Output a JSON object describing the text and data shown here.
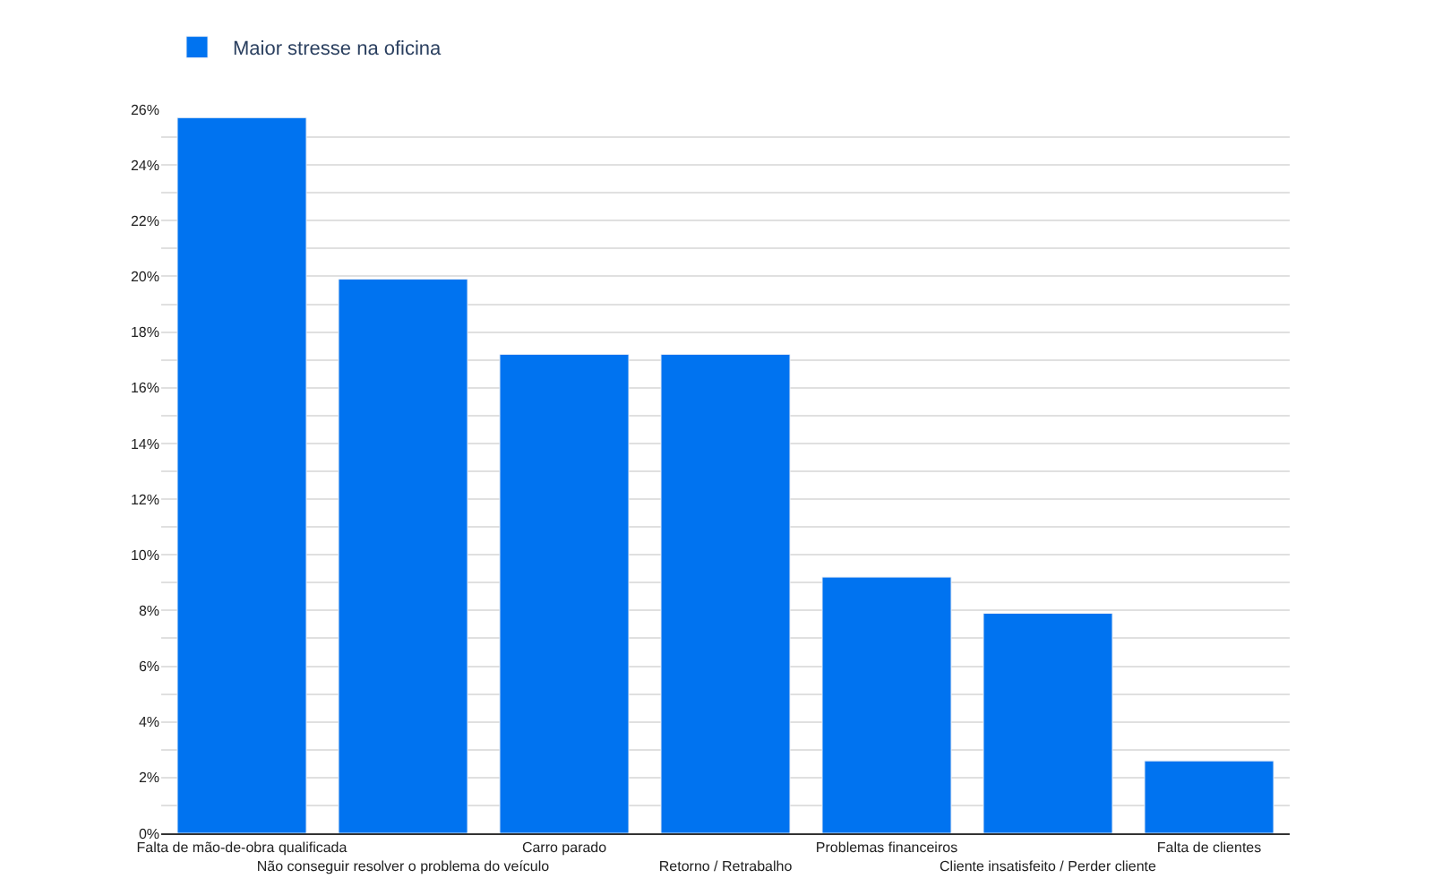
{
  "chart_data": {
    "type": "bar",
    "categories": [
      "Falta de mão-de-obra qualificada",
      "Não conseguir resolver o problema do veículo",
      "Carro parado",
      "Retorno / Retrabalho",
      "Problemas financeiros",
      "Cliente insatisfeito / Perder cliente",
      "Falta de clientes"
    ],
    "series": [
      {
        "name": "Maior stresse na oficina",
        "color": "#0073f0",
        "values": [
          25.7,
          19.9,
          17.2,
          17.2,
          9.2,
          7.9,
          2.6
        ]
      }
    ],
    "ylim": [
      0,
      26
    ],
    "yticks": [
      {
        "value": 0,
        "label": "0%"
      },
      {
        "value": 1,
        "label": null
      },
      {
        "value": 2,
        "label": "2%"
      },
      {
        "value": 3,
        "label": null
      },
      {
        "value": 4,
        "label": "4%"
      },
      {
        "value": 5,
        "label": null
      },
      {
        "value": 6,
        "label": "6%"
      },
      {
        "value": 7,
        "label": null
      },
      {
        "value": 8,
        "label": "8%"
      },
      {
        "value": 9,
        "label": null
      },
      {
        "value": 10,
        "label": "10%"
      },
      {
        "value": 11,
        "label": null
      },
      {
        "value": 12,
        "label": "12%"
      },
      {
        "value": 13,
        "label": null
      },
      {
        "value": 14,
        "label": "14%"
      },
      {
        "value": 15,
        "label": null
      },
      {
        "value": 16,
        "label": "16%"
      },
      {
        "value": 17,
        "label": null
      },
      {
        "value": 18,
        "label": "18%"
      },
      {
        "value": 19,
        "label": null
      },
      {
        "value": 20,
        "label": "20%"
      },
      {
        "value": 21,
        "label": null
      },
      {
        "value": 22,
        "label": "22%"
      },
      {
        "value": 23,
        "label": null
      },
      {
        "value": 24,
        "label": "24%"
      },
      {
        "value": 25,
        "label": null
      },
      {
        "value": 26,
        "label": "26%"
      }
    ],
    "grid": "y",
    "legend": "top left"
  }
}
